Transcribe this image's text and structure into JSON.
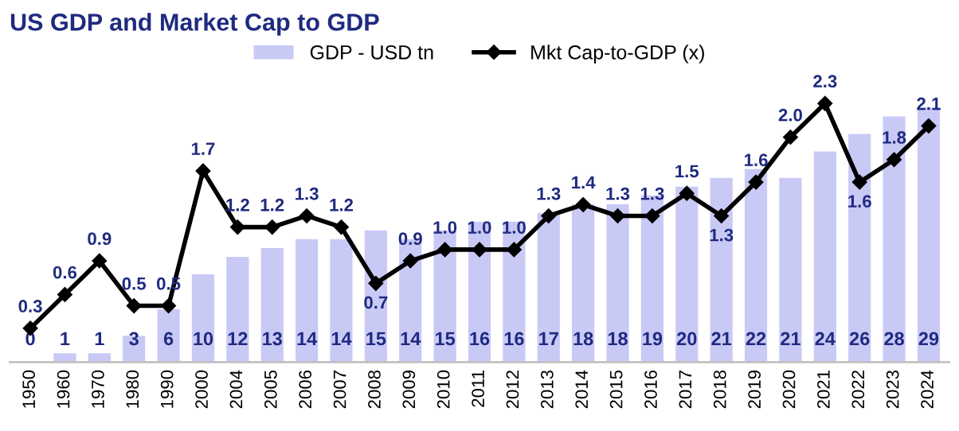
{
  "chart_data": {
    "type": "bar",
    "title": "US GDP and Market Cap to GDP",
    "categories": [
      "1950",
      "1960",
      "1970",
      "1980",
      "1990",
      "2000",
      "2004",
      "2005",
      "2006",
      "2007",
      "2008",
      "2009",
      "2010",
      "2011",
      "2012",
      "2013",
      "2014",
      "2015",
      "2016",
      "2017",
      "2018",
      "2019",
      "2020",
      "2021",
      "2022",
      "2023",
      "2024"
    ],
    "series": [
      {
        "name": "GDP - USD tn",
        "color": "#c9c9f6",
        "values": [
          0,
          1,
          1,
          3,
          6,
          10,
          12,
          13,
          14,
          14,
          15,
          14,
          15,
          16,
          16,
          17,
          18,
          18,
          19,
          20,
          21,
          22,
          21,
          24,
          26,
          28,
          29
        ]
      },
      {
        "name": "Mkt Cap-to-GDP (x)",
        "type": "line",
        "axis": "y2",
        "color": "#000000",
        "values": [
          0.3,
          0.6,
          0.9,
          0.5,
          0.5,
          1.7,
          1.2,
          1.2,
          1.3,
          1.2,
          0.7,
          0.9,
          1.0,
          1.0,
          1.0,
          1.3,
          1.4,
          1.3,
          1.3,
          1.5,
          1.3,
          1.6,
          2.0,
          2.3,
          1.6,
          1.8,
          2.1
        ],
        "value_labels": [
          "0.3",
          "0.6",
          "0.9",
          "0.5",
          "0.5",
          "1.7",
          "1.2",
          "1.2",
          "1.3",
          "1.2",
          "0.7",
          "0.9",
          "1.0",
          "1.0",
          "1.0",
          "1.3",
          "1.4",
          "1.3",
          "1.3",
          "1.5",
          "1.3",
          "1.6",
          "2.0",
          "2.3",
          "1.6",
          "1.8",
          "2.1"
        ]
      }
    ],
    "data_labels": true,
    "legend": "top",
    "marker": "diamond",
    "line_style": "solid",
    "tick_labels": "x",
    "grid": false
  }
}
